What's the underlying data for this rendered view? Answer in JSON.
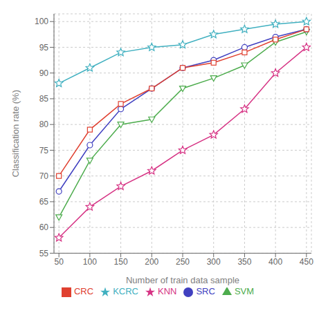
{
  "chart_data": {
    "type": "line",
    "x": [
      50,
      100,
      150,
      200,
      250,
      300,
      350,
      400,
      450
    ],
    "series": [
      {
        "name": "KNN",
        "color": "#d63384",
        "marker": "star",
        "values": [
          58,
          64,
          68,
          71,
          75,
          78,
          83,
          90,
          95
        ]
      },
      {
        "name": "SVM",
        "color": "#4dac4d",
        "marker": "triangle_down",
        "values": [
          62,
          73,
          80,
          81,
          87,
          89,
          91.5,
          96,
          98
        ]
      },
      {
        "name": "SRC",
        "color": "#4040c0",
        "marker": "circle",
        "values": [
          67,
          76,
          83,
          87,
          91,
          92.5,
          95,
          97,
          98.5
        ]
      },
      {
        "name": "CRC",
        "color": "#e04030",
        "marker": "square",
        "values": [
          70,
          79,
          84,
          87,
          91,
          92,
          94,
          96.5,
          98.5
        ]
      },
      {
        "name": "KCRC",
        "color": "#40b0c0",
        "marker": "star",
        "values": [
          88,
          91,
          94,
          95,
          95.5,
          97.5,
          98.5,
          99.5,
          100
        ]
      }
    ],
    "xlabel": "Number of train data sample",
    "ylabel": "Classification rate (%)",
    "xlim": [
      42,
      458
    ],
    "ylim": [
      55,
      101.5
    ],
    "xticks": [
      50,
      100,
      150,
      200,
      250,
      300,
      350,
      400,
      450
    ],
    "yticks": [
      55,
      60,
      65,
      70,
      75,
      80,
      85,
      90,
      95,
      100
    ],
    "grid": true,
    "legend": "bottom"
  }
}
